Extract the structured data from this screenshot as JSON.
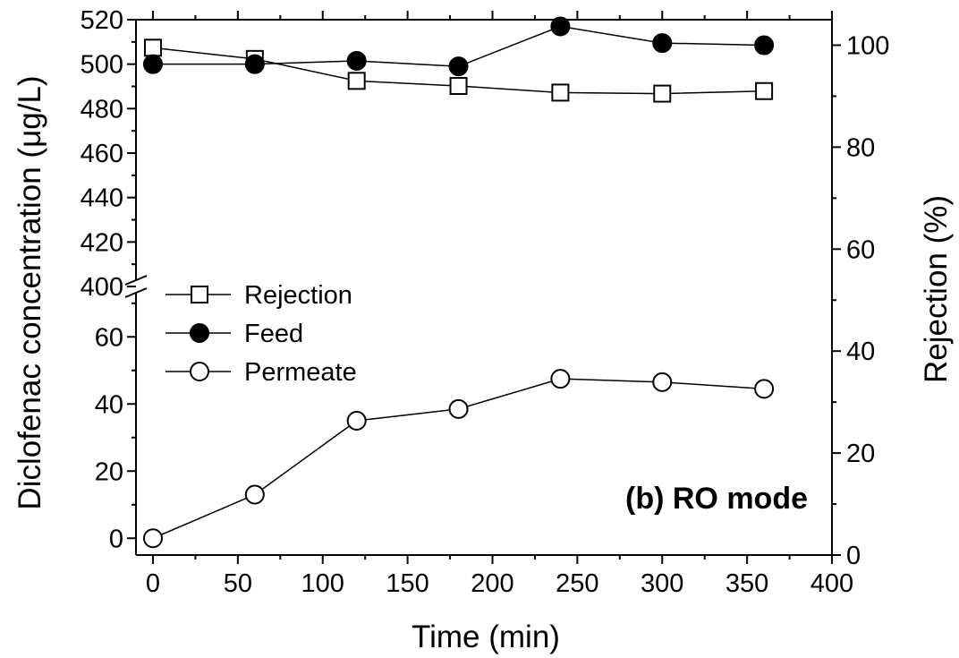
{
  "chart_data": {
    "type": "line",
    "annotation": "(b) RO mode",
    "xlabel": "Time (min)",
    "ylabel_left": "Diclofenac concentration (μg/L)",
    "ylabel_right": "Rejection (%)",
    "x_ticks": [
      "0",
      "50",
      "100",
      "150",
      "200",
      "250",
      "300",
      "350",
      "400"
    ],
    "xlim": [
      -10,
      400
    ],
    "left_axis": {
      "broken": true,
      "upper_segment": {
        "range": [
          400,
          520
        ],
        "ticks": [
          "400",
          "420",
          "440",
          "460",
          "480",
          "500",
          "520"
        ]
      },
      "lower_segment": {
        "range": [
          -5,
          75
        ],
        "ticks": [
          "0",
          "20",
          "40",
          "60"
        ]
      }
    },
    "right_axis": {
      "range": [
        0,
        105
      ],
      "ticks": [
        "0",
        "20",
        "40",
        "60",
        "80",
        "100"
      ]
    },
    "legend": {
      "placement": "left",
      "entries": [
        "Rejection",
        "Feed",
        "Permeate"
      ]
    },
    "series": [
      {
        "name": "Rejection",
        "axis": "right",
        "marker": "open-square",
        "x": [
          0,
          60,
          120,
          180,
          240,
          300,
          360
        ],
        "y": [
          99.5,
          97.3,
          93.0,
          92.0,
          90.7,
          90.5,
          91.0
        ]
      },
      {
        "name": "Feed",
        "axis": "left",
        "marker": "filled-circle",
        "x": [
          0,
          60,
          120,
          180,
          240,
          300,
          360
        ],
        "y": [
          500,
          500,
          501.5,
          499,
          517,
          509.5,
          508.5
        ]
      },
      {
        "name": "Permeate",
        "axis": "left",
        "marker": "open-circle",
        "x": [
          0,
          60,
          120,
          180,
          240,
          300,
          360
        ],
        "y": [
          0,
          13,
          35,
          38.5,
          47.5,
          46.5,
          44.5
        ]
      }
    ]
  }
}
